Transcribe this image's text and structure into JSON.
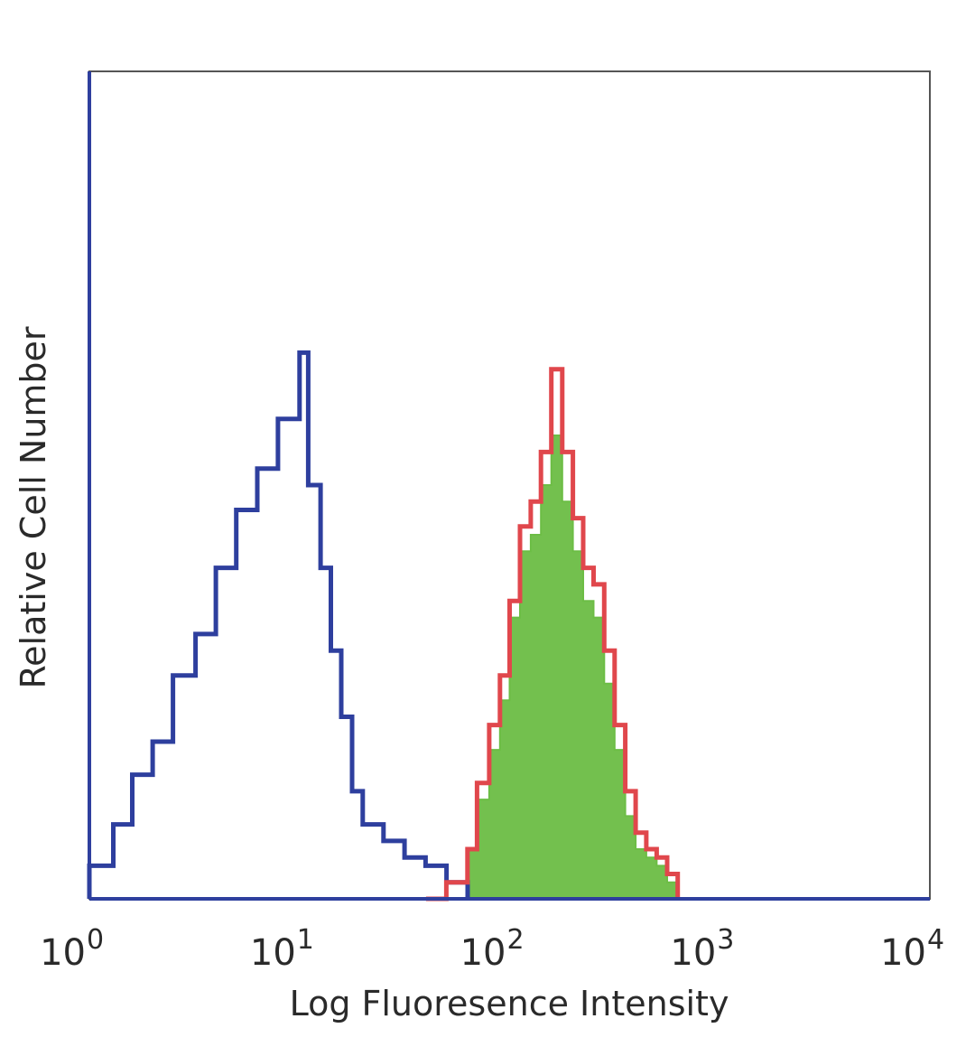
{
  "chart_data": {
    "type": "area",
    "xlabel": "Log Fluoresence Intensity",
    "ylabel": "Relative Cell Number",
    "x_scale": "log",
    "xlim": [
      1,
      10000
    ],
    "ylim": [
      0,
      100
    ],
    "grid": false,
    "legend": "none",
    "x_ticks": [
      {
        "value": 1,
        "base": "10",
        "exp": "0"
      },
      {
        "value": 10,
        "base": "10",
        "exp": "1"
      },
      {
        "value": 100,
        "base": "10",
        "exp": "2"
      },
      {
        "value": 1000,
        "base": "10",
        "exp": "3"
      },
      {
        "value": 10000,
        "base": "10",
        "exp": "4"
      }
    ],
    "series": [
      {
        "style": "line",
        "color": "#2e3f9e",
        "x": [
          1.0,
          1.3,
          1.6,
          2.0,
          2.5,
          3.2,
          4.0,
          5.0,
          6.3,
          7.9,
          10.0,
          11.0,
          12.6,
          14.1,
          15.8,
          17.8,
          20.0,
          25.1,
          31.6,
          39.8,
          50.1,
          63.1
        ],
        "y": [
          4,
          9,
          15,
          19,
          27,
          32,
          40,
          47,
          52,
          58,
          66,
          50,
          40,
          30,
          22,
          13,
          9,
          7,
          5,
          4,
          2,
          0
        ]
      },
      {
        "style": "line",
        "color": "#e0474c",
        "x": [
          40,
          50,
          63,
          70,
          80,
          90,
          100,
          112,
          126,
          141,
          158,
          178,
          200,
          224,
          251,
          282,
          316,
          355,
          398,
          447,
          501,
          562,
          631
        ],
        "y": [
          0,
          2,
          6,
          14,
          21,
          27,
          36,
          45,
          48,
          54,
          64,
          54,
          46,
          40,
          38,
          30,
          21,
          13,
          8,
          6,
          5,
          3,
          0
        ]
      },
      {
        "style": "fill",
        "color": "#6cbd45",
        "x": [
          50,
          63,
          70,
          80,
          90,
          100,
          112,
          126,
          141,
          158,
          178,
          200,
          224,
          251,
          282,
          316,
          355,
          398,
          447,
          501,
          562,
          631
        ],
        "y": [
          0,
          6,
          12,
          18,
          24,
          34,
          42,
          44,
          50,
          56,
          48,
          42,
          36,
          34,
          26,
          18,
          10,
          6,
          5,
          4,
          2,
          0
        ]
      }
    ]
  }
}
